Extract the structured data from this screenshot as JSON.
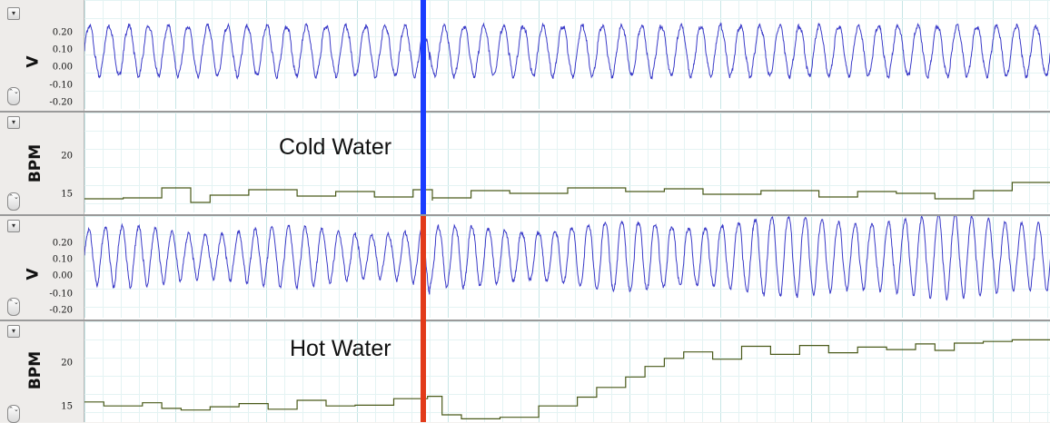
{
  "annotations": {
    "cold": "Cold Water",
    "hot": "Hot Water"
  },
  "colors": {
    "voltage_trace": "#3a3ac8",
    "bpm_trace": "#4a5a1a",
    "cold_marker": "#1a3cff",
    "hot_marker": "#e23a1a",
    "grid_major": "#c7e6e6",
    "grid_minor": "#e4f3f3"
  },
  "controls": {
    "collapse_icon": "▾",
    "spinner_icon": "⌃⌄"
  },
  "chart_data": [
    {
      "type": "line",
      "panel": "cold-voltage",
      "ylabel": "V",
      "yticks": [
        "0.20",
        "0.10",
        "0.00",
        "-0.10",
        "-0.20"
      ],
      "ytick_values": [
        0.2,
        0.1,
        0.0,
        -0.1,
        -0.2
      ],
      "ylim": [
        -0.25,
        0.25
      ],
      "xlim": [
        0,
        1
      ],
      "grid": true,
      "series": [
        {
          "shape": "periodic-wave",
          "cycles": 49,
          "min": -0.1,
          "max": 0.13,
          "pulse_at": 0.353
        }
      ]
    },
    {
      "type": "line",
      "panel": "cold-bpm",
      "ylabel": "BPM",
      "yticks": [
        "20",
        "15"
      ],
      "ytick_values": [
        20,
        15
      ],
      "ylim": [
        13.5,
        24.5
      ],
      "xlim": [
        0,
        1
      ],
      "grid": true,
      "series": [
        {
          "shape": "step",
          "x": [
            0,
            0.04,
            0.08,
            0.11,
            0.13,
            0.17,
            0.22,
            0.26,
            0.3,
            0.34,
            0.36,
            0.36,
            0.4,
            0.44,
            0.5,
            0.56,
            0.6,
            0.64,
            0.7,
            0.76,
            0.8,
            0.84,
            0.88,
            0.92,
            0.96,
            1
          ],
          "y": [
            15,
            15.1,
            16.2,
            14.6,
            15.4,
            16,
            15.3,
            15.8,
            15.2,
            16,
            14.8,
            15.1,
            15.9,
            15.6,
            16.2,
            15.8,
            16.1,
            15.5,
            15.9,
            15.2,
            15.8,
            15.6,
            15,
            15.9,
            16.8,
            16.4
          ]
        }
      ]
    },
    {
      "type": "line",
      "panel": "hot-voltage",
      "ylabel": "V",
      "yticks": [
        "0.20",
        "0.10",
        "0.00",
        "-0.10",
        "-0.20"
      ],
      "ytick_values": [
        0.2,
        0.1,
        0.0,
        -0.1,
        -0.2
      ],
      "ylim": [
        -0.25,
        0.25
      ],
      "xlim": [
        0,
        1
      ],
      "grid": true,
      "series": [
        {
          "shape": "periodic-wave",
          "cycles": 58,
          "min": -0.13,
          "max": 0.23,
          "pulse_at": 0.353
        }
      ]
    },
    {
      "type": "line",
      "panel": "hot-bpm",
      "ylabel": "BPM",
      "yticks": [
        "20",
        "15"
      ],
      "ytick_values": [
        20,
        15
      ],
      "ylim": [
        13.5,
        26
      ],
      "xlim": [
        0,
        1
      ],
      "grid": true,
      "series": [
        {
          "shape": "step",
          "x": [
            0,
            0.02,
            0.06,
            0.08,
            0.1,
            0.13,
            0.16,
            0.19,
            0.22,
            0.25,
            0.28,
            0.32,
            0.355,
            0.37,
            0.39,
            0.43,
            0.47,
            0.51,
            0.53,
            0.56,
            0.58,
            0.6,
            0.62,
            0.65,
            0.68,
            0.71,
            0.74,
            0.77,
            0.8,
            0.83,
            0.86,
            0.88,
            0.9,
            0.93,
            0.96,
            1
          ],
          "y": [
            16,
            15.5,
            15.9,
            15.2,
            15,
            15.4,
            15.8,
            15.1,
            16.2,
            15.5,
            15.6,
            16.4,
            16.7,
            14.4,
            13.9,
            14.1,
            15.5,
            16.6,
            17.8,
            19.1,
            20.4,
            21.4,
            22.2,
            21.3,
            22.9,
            21.9,
            23,
            22.1,
            22.8,
            22.5,
            23.2,
            22.4,
            23.3,
            23.5,
            23.7,
            23.8
          ]
        }
      ]
    }
  ]
}
